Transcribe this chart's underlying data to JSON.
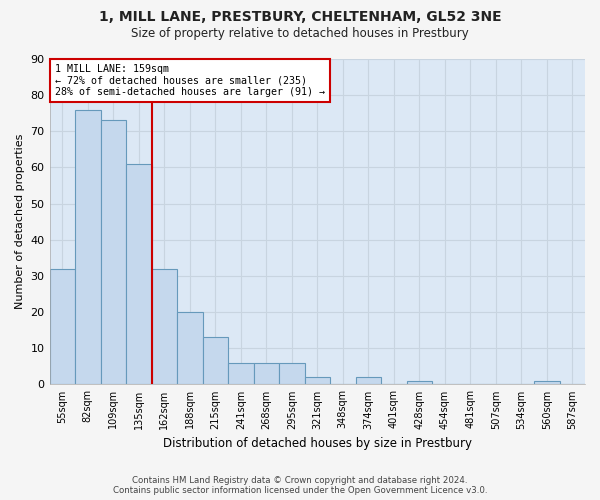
{
  "title": "1, MILL LANE, PRESTBURY, CHELTENHAM, GL52 3NE",
  "subtitle": "Size of property relative to detached houses in Prestbury",
  "xlabel": "Distribution of detached houses by size in Prestbury",
  "ylabel": "Number of detached properties",
  "categories": [
    "55sqm",
    "82sqm",
    "109sqm",
    "135sqm",
    "162sqm",
    "188sqm",
    "215sqm",
    "241sqm",
    "268sqm",
    "295sqm",
    "321sqm",
    "348sqm",
    "374sqm",
    "401sqm",
    "428sqm",
    "454sqm",
    "481sqm",
    "507sqm",
    "534sqm",
    "560sqm",
    "587sqm"
  ],
  "values": [
    32,
    76,
    73,
    61,
    32,
    20,
    13,
    6,
    6,
    6,
    2,
    0,
    2,
    0,
    1,
    0,
    0,
    0,
    0,
    1,
    0
  ],
  "bar_color": "#c5d8ed",
  "bar_edge_color": "#6699bb",
  "marker_index": 3,
  "marker_label_line1": "1 MILL LANE: 159sqm",
  "marker_label_line2": "← 72% of detached houses are smaller (235)",
  "marker_label_line3": "28% of semi-detached houses are larger (91) →",
  "marker_color": "#cc0000",
  "ylim": [
    0,
    90
  ],
  "yticks": [
    0,
    10,
    20,
    30,
    40,
    50,
    60,
    70,
    80,
    90
  ],
  "grid_color": "#c8d4e0",
  "bg_color": "#dce8f5",
  "fig_bg_color": "#f5f5f5",
  "footer1": "Contains HM Land Registry data © Crown copyright and database right 2024.",
  "footer2": "Contains public sector information licensed under the Open Government Licence v3.0."
}
